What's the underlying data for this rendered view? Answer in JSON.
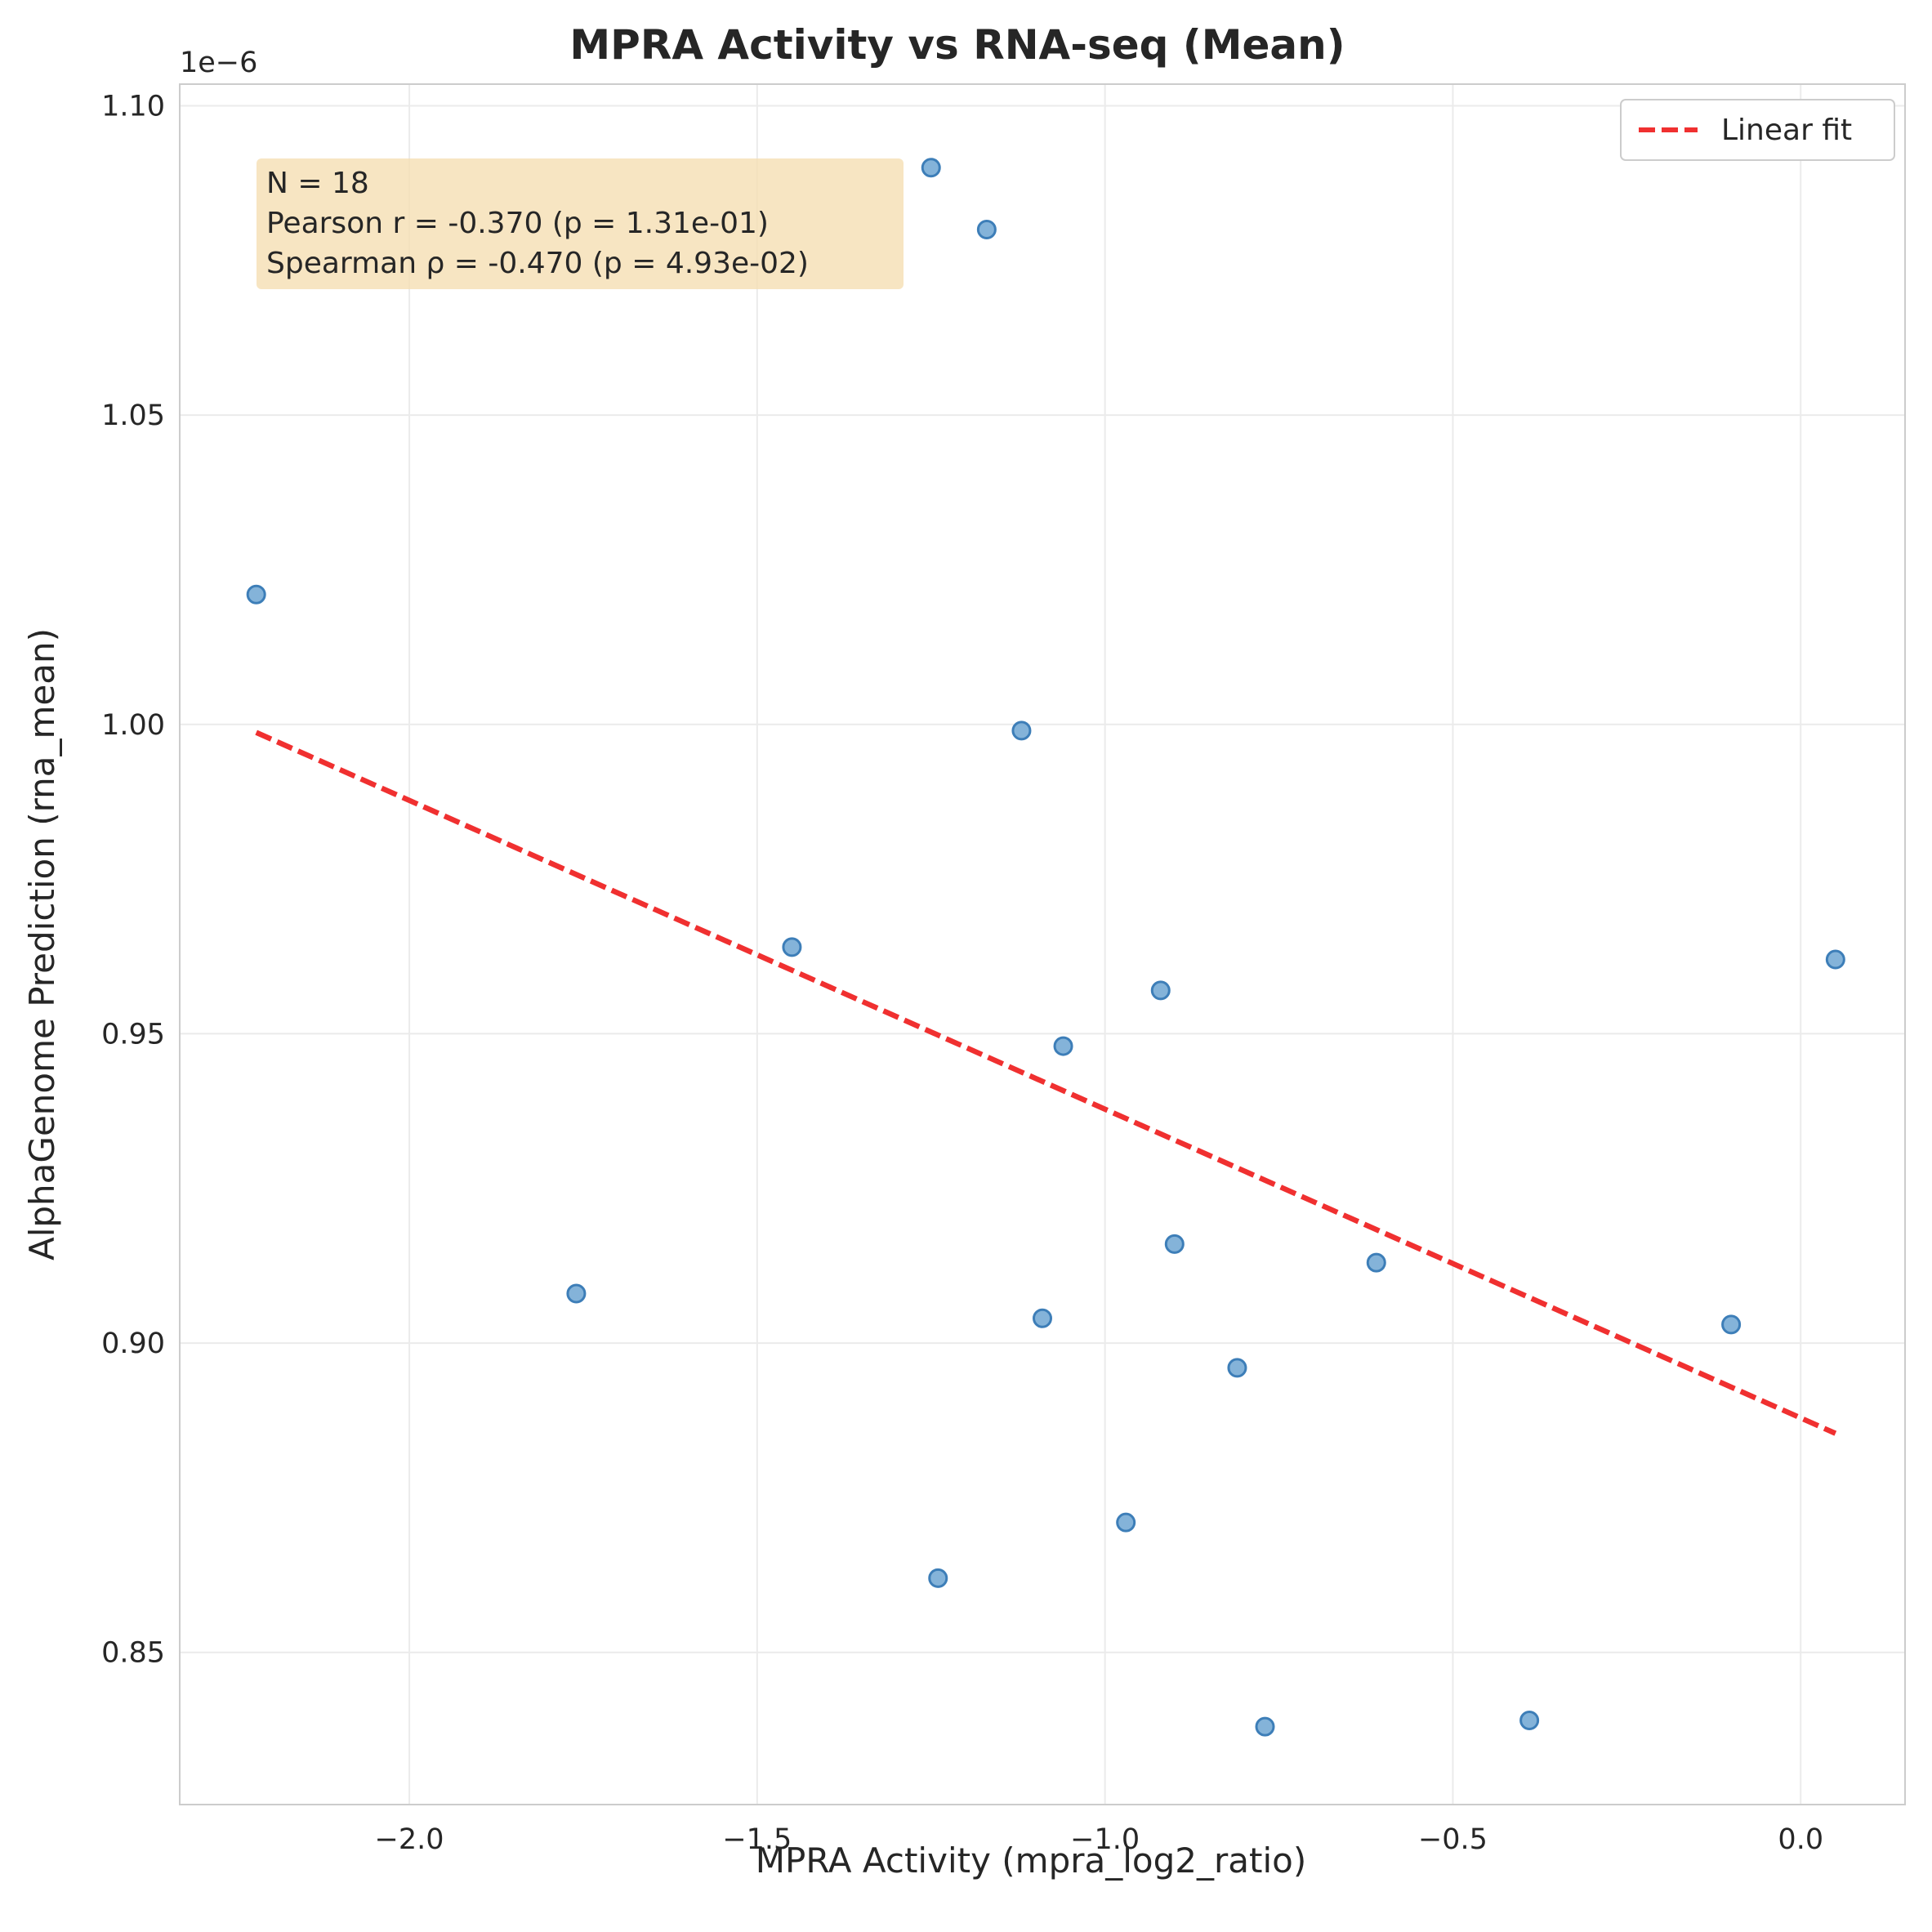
{
  "chart_data": {
    "type": "scatter",
    "title": "MPRA Activity vs RNA-seq (Mean)",
    "xlabel": "MPRA Activity (mpra_log2_ratio)",
    "ylabel": "AlphaGenome Prediction (rna_mean)",
    "y_offset_label": "1e−6",
    "xlim": [
      -2.33,
      0.15
    ],
    "ylim": [
      0.8254,
      1.1035
    ],
    "x_ticks": [
      -2.0,
      -1.5,
      -1.0,
      -0.5,
      0.0
    ],
    "x_tick_labels": [
      "−2.0",
      "−1.5",
      "−1.0",
      "−0.5",
      "0.0"
    ],
    "y_ticks": [
      0.85,
      0.9,
      0.95,
      1.0,
      1.05,
      1.1
    ],
    "y_tick_labels": [
      "0.85",
      "0.90",
      "0.95",
      "1.00",
      "1.05",
      "1.10"
    ],
    "grid": true,
    "legend_position": "top-right",
    "series": [
      {
        "kind": "points",
        "color": "#6fa6d2",
        "edge_color": "#3d7eb8",
        "x": [
          -1.25,
          -1.17,
          -2.22,
          -1.12,
          -1.45,
          -0.92,
          -1.06,
          0.05,
          -0.9,
          -0.61,
          -1.76,
          -1.09,
          -0.1,
          -0.81,
          -0.97,
          -1.24,
          -0.77,
          -0.39
        ],
        "y": [
          1.09,
          1.08,
          1.021,
          0.999,
          0.964,
          0.957,
          0.948,
          0.962,
          0.916,
          0.913,
          0.908,
          0.904,
          0.903,
          0.896,
          0.871,
          0.862,
          0.838,
          0.839
        ]
      },
      {
        "kind": "line",
        "name": "Linear fit",
        "color": "#f03030",
        "x": [
          -2.22,
          0.05
        ],
        "y": [
          0.9987,
          0.8854
        ]
      }
    ],
    "annotation": {
      "lines": [
        "N = 18",
        "Pearson r = -0.370 (p = 1.31e-01)",
        "Spearman ρ = -0.470 (p = 4.93e-02)"
      ],
      "background": "#f5deb3"
    },
    "legend_entries": [
      "Linear fit"
    ]
  }
}
